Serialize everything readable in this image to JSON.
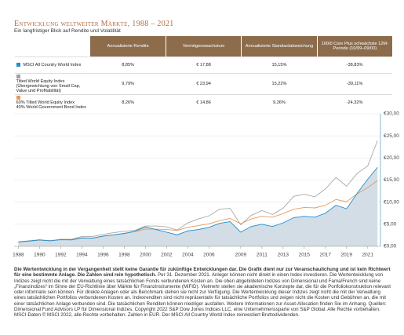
{
  "header": {
    "title": "Entwicklung weltweiter Märkte, 1988 – 2021",
    "subtitle": "Ein langfristiger Blick auf Rendite und Volatilität"
  },
  "table": {
    "columns": [
      "Annualisierte Rendite",
      "Vermögenswachstum",
      "Annualisierte Standardabweichung",
      "100/0 Core Plus schwächste 12M-Periode (10/99–09/00)"
    ],
    "rows": [
      {
        "color": "#1f8fcf",
        "name": [
          "MSCI All Country World Index"
        ],
        "cells": [
          "8,85%",
          "€ 17,88",
          "15,15%",
          "-38,83%"
        ]
      },
      {
        "color": "#a0a0a0",
        "name": [
          "Tilted World Equity Index",
          "(Übergewichtung von Small Cap, Value und Profitabilität)"
        ],
        "cells": [
          "9,79%",
          "€ 23,94",
          "15,22%",
          "-39,11%"
        ]
      },
      {
        "color": "#e89a5a",
        "name": [
          "60% Tilted World Equity Index",
          "40% World Government Bond Index"
        ],
        "cells": [
          "8,26%",
          "€ 14,86",
          "9,26%",
          "-24,32%"
        ]
      }
    ]
  },
  "chart_data": {
    "type": "line",
    "x": [
      1988,
      1989,
      1990,
      1991,
      1992,
      1993,
      1994,
      1995,
      1996,
      1997,
      1998,
      1999,
      2000,
      2001,
      2002,
      2003,
      2004,
      2005,
      2006,
      2007,
      2008,
      2009,
      2010,
      2011,
      2012,
      2013,
      2014,
      2015,
      2016,
      2017,
      2018,
      2019,
      2020,
      2021,
      2021.92
    ],
    "series": [
      {
        "color": "#1f8fcf",
        "area": "#d3dde6",
        "values": [
          1,
          1.2,
          1.45,
          1.25,
          1.5,
          1.45,
          1.9,
          1.85,
          2.3,
          2.6,
          2.9,
          3.4,
          4.4,
          3.8,
          3.2,
          2.6,
          3.5,
          3.8,
          4.3,
          5.2,
          5.6,
          3.2,
          4.5,
          5.0,
          4.5,
          5.3,
          6.5,
          6.8,
          6.6,
          7.5,
          9.3,
          8.5,
          12.0,
          15.2,
          17.88
        ]
      },
      {
        "color": "#a8a8a8",
        "values": [
          1,
          1.25,
          1.5,
          1.25,
          1.6,
          1.6,
          2.2,
          2.2,
          2.7,
          3.1,
          3.4,
          3.6,
          4.6,
          4.6,
          4.4,
          3.7,
          5.3,
          6.2,
          6.9,
          8.4,
          8.6,
          4.9,
          7.0,
          8.1,
          7.2,
          8.6,
          11.3,
          11.8,
          11.2,
          13.0,
          15.6,
          13.6,
          16.5,
          18.2,
          23.94
        ]
      },
      {
        "color": "#e89a5a",
        "values": [
          1,
          1.2,
          1.4,
          1.3,
          1.55,
          1.6,
          1.95,
          1.9,
          2.35,
          2.6,
          2.95,
          3.35,
          3.9,
          3.9,
          3.8,
          3.6,
          4.3,
          4.7,
          5.1,
          5.8,
          6.3,
          5.1,
          6.2,
          6.8,
          6.6,
          7.4,
          8.4,
          8.8,
          8.7,
          9.3,
          10.6,
          10.1,
          11.9,
          13.3,
          14.86
        ]
      }
    ],
    "xlim": [
      1987.6,
      2022.2
    ],
    "xticks": [
      1988,
      1990,
      1992,
      1994,
      1996,
      1998,
      2000,
      2002,
      2004,
      2006,
      2009,
      2011,
      2013,
      2015,
      2017,
      2019,
      2021
    ],
    "ylim": [
      0,
      30
    ],
    "yticks": [
      {
        "value": 0,
        "label": "€0,00"
      },
      {
        "value": 5,
        "label": "€5,00"
      },
      {
        "value": 10,
        "label": "€10,00"
      },
      {
        "value": 15,
        "label": "€15,00"
      },
      {
        "value": 20,
        "label": "€20,00"
      },
      {
        "value": 25,
        "label": "€25,00"
      },
      {
        "value": 30,
        "label": "€30,00"
      }
    ],
    "grid": true
  },
  "notes": {
    "bold": "Die Wertentwicklung in der Vergangenheit stellt keine Garantie für zukünftige Entwicklungen dar. Die Grafik dient nur zur Veranschaulichung und ist kein Richtwert für eine bestimmte Anlage. Die Zahlen sind rein hypothetisch.",
    "date": "Per 31. Dezember 2021.",
    "text": "Anleger können nicht direkt in einen Index investieren. Die Wertentwicklung von Indizes zeigt nicht die mit der Verwaltung eines tatsächlichen Fonds verbundenen Kosten an. Die oben abgebildeten Indizes von Dimensional und Fama/French sind keine „Finanzindizes“ im Sinne der EU-Richtlinie über Märkte für Finanzinstrumente (MiFID). Vielmehr stellen sie akademische Konzepte dar, die für die Portfoliokonstruktion relevant oder informativ sein können. Für direkte Anlagen oder als Benchmark stehen sie nicht zur Verfügung. Die Wertentwicklung dieser Indizes zeigt nicht die mit der Verwaltung eines tatsächlichen Portfolios verbundenen Kosten an. Indexrenditen sind nicht repräsentativ für tatsächliche Portfolios und zeigen nicht die Kosten und Gebühren an, die mit einer tatsächlichen Anlage verbunden sind. Die tatsächlichen Renditen können niedriger ausfallen. Weitere Informationen zur Asset-Allocation finden Sie im Anhang. Quellen: Dimensional Fund Advisors LP für Dimensional Indizes. Copyright 2022 S&P Dow Jones Indices LLC, eine Unternehmenssparte von S&P Global. Alle Rechte vorbehalten. MSCI-Daten © MSCI 2022, alle Rechte vorbehalten. Zahlen in EUR. Der MSCI All Country World Index reinvestiert Bruttodividenden."
  }
}
